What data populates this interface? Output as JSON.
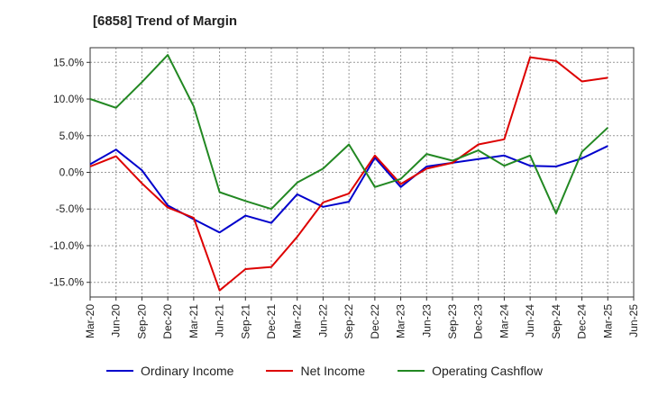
{
  "chart_data": {
    "type": "line",
    "title": "[6858]  Trend of Margin",
    "x": [
      "Mar-20",
      "Jun-20",
      "Sep-20",
      "Dec-20",
      "Mar-21",
      "Jun-21",
      "Sep-21",
      "Dec-21",
      "Mar-22",
      "Jun-22",
      "Sep-22",
      "Dec-22",
      "Mar-23",
      "Jun-23",
      "Sep-23",
      "Dec-23",
      "Mar-24",
      "Jun-24",
      "Sep-24",
      "Dec-24",
      "Mar-25",
      "Jun-25"
    ],
    "y_ticks": [
      "15.0%",
      "10.0%",
      "5.0%",
      "0.0%",
      "-5.0%",
      "-10.0%",
      "-15.0%"
    ],
    "y_tick_values": [
      15,
      10,
      5,
      0,
      -5,
      -10,
      -15
    ],
    "ylim": [
      -17,
      17
    ],
    "grid": true,
    "legend_position": "bottom",
    "series": [
      {
        "name": "Ordinary Income",
        "color": "#0000cc",
        "values": [
          1.1,
          3.1,
          0.3,
          -4.5,
          -6.4,
          -8.2,
          -5.9,
          -6.9,
          -3.0,
          -4.7,
          -4.0,
          2.0,
          -2.0,
          0.8,
          1.3,
          1.8,
          2.3,
          0.9,
          0.8,
          1.9,
          3.6,
          null
        ]
      },
      {
        "name": "Net Income",
        "color": "#dd0000",
        "values": [
          0.8,
          2.2,
          -1.5,
          -4.8,
          -6.2,
          -16.1,
          -13.2,
          -12.9,
          -8.8,
          -4.1,
          -2.9,
          2.3,
          -1.6,
          0.5,
          1.3,
          3.8,
          4.5,
          15.7,
          15.2,
          12.4,
          12.9,
          null
        ]
      },
      {
        "name": "Operating Cashflow",
        "color": "#228822",
        "values": [
          10.0,
          8.8,
          12.3,
          16.0,
          9.0,
          -2.7,
          -3.9,
          -5.0,
          -1.4,
          0.5,
          3.8,
          -2.0,
          -0.9,
          2.5,
          1.6,
          3.0,
          0.9,
          2.3,
          -5.6,
          2.8,
          6.1,
          null
        ]
      }
    ]
  }
}
